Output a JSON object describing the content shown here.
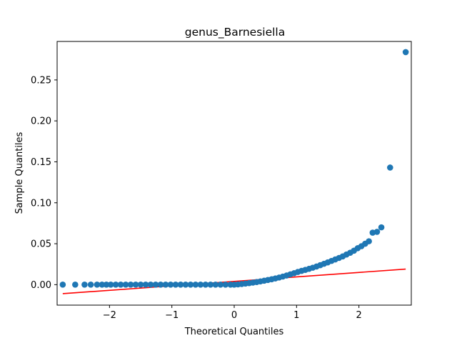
{
  "chart_data": {
    "type": "scatter",
    "title": "genus_Barnesiella",
    "xlabel": "Theoretical Quantiles",
    "ylabel": "Sample Quantiles",
    "xlim": [
      -2.84,
      2.84
    ],
    "ylim": [
      -0.025,
      0.297
    ],
    "xticks": [
      -2,
      -1,
      0,
      1,
      2
    ],
    "xtick_labels": [
      "−2",
      "−1",
      "0",
      "1",
      "2"
    ],
    "yticks": [
      0.0,
      0.05,
      0.1,
      0.15,
      0.2,
      0.25
    ],
    "ytick_labels": [
      "0.00",
      "0.05",
      "0.10",
      "0.15",
      "0.20",
      "0.25"
    ],
    "marker_color": "#1f77b4",
    "line_color": "#ff0000",
    "reference_line": {
      "x": [
        -2.75,
        2.75
      ],
      "y": [
        -0.011,
        0.019
      ]
    },
    "series": [
      {
        "points": [
          [
            -2.75,
            0.0
          ],
          [
            -2.55,
            0.0
          ],
          [
            -2.4,
            0.0
          ],
          [
            -2.3,
            0.0
          ],
          [
            -2.2,
            0.0
          ],
          [
            -2.12,
            0.0
          ],
          [
            -2.05,
            0.0
          ],
          [
            -1.98,
            0.0
          ],
          [
            -1.9,
            0.0
          ],
          [
            -1.82,
            0.0
          ],
          [
            -1.74,
            0.0
          ],
          [
            -1.66,
            0.0
          ],
          [
            -1.58,
            0.0
          ],
          [
            -1.5,
            0.0
          ],
          [
            -1.42,
            0.0
          ],
          [
            -1.34,
            0.0
          ],
          [
            -1.26,
            0.0
          ],
          [
            -1.18,
            0.0
          ],
          [
            -1.1,
            0.0
          ],
          [
            -1.02,
            0.0
          ],
          [
            -0.94,
            0.0
          ],
          [
            -0.86,
            0.0
          ],
          [
            -0.78,
            0.0
          ],
          [
            -0.7,
            0.0
          ],
          [
            -0.62,
            0.0
          ],
          [
            -0.54,
            0.0
          ],
          [
            -0.46,
            0.0
          ],
          [
            -0.38,
            0.0
          ],
          [
            -0.3,
            0.0
          ],
          [
            -0.22,
            0.0
          ],
          [
            -0.14,
            0.0
          ],
          [
            -0.06,
            0.0
          ],
          [
            0.0,
            0.0
          ],
          [
            0.06,
            0.0003
          ],
          [
            0.12,
            0.0008
          ],
          [
            0.18,
            0.0013
          ],
          [
            0.24,
            0.0019
          ],
          [
            0.3,
            0.0025
          ],
          [
            0.36,
            0.0032
          ],
          [
            0.42,
            0.004
          ],
          [
            0.48,
            0.0048
          ],
          [
            0.54,
            0.0057
          ],
          [
            0.6,
            0.0066
          ],
          [
            0.66,
            0.0076
          ],
          [
            0.72,
            0.0087
          ],
          [
            0.78,
            0.0099
          ],
          [
            0.84,
            0.0112
          ],
          [
            0.9,
            0.0126
          ],
          [
            0.96,
            0.014
          ],
          [
            1.02,
            0.0155
          ],
          [
            1.08,
            0.0168
          ],
          [
            1.14,
            0.018
          ],
          [
            1.2,
            0.0193
          ],
          [
            1.26,
            0.0207
          ],
          [
            1.32,
            0.0222
          ],
          [
            1.38,
            0.0238
          ],
          [
            1.44,
            0.0255
          ],
          [
            1.5,
            0.0272
          ],
          [
            1.56,
            0.029
          ],
          [
            1.62,
            0.0308
          ],
          [
            1.68,
            0.0326
          ],
          [
            1.74,
            0.0345
          ],
          [
            1.8,
            0.0368
          ],
          [
            1.86,
            0.039
          ],
          [
            1.92,
            0.0415
          ],
          [
            1.98,
            0.0445
          ],
          [
            2.04,
            0.047
          ],
          [
            2.1,
            0.05
          ],
          [
            2.16,
            0.053
          ],
          [
            2.22,
            0.0635
          ],
          [
            2.29,
            0.0645
          ],
          [
            2.36,
            0.07
          ],
          [
            2.5,
            0.143
          ],
          [
            2.75,
            0.284
          ]
        ]
      }
    ]
  }
}
